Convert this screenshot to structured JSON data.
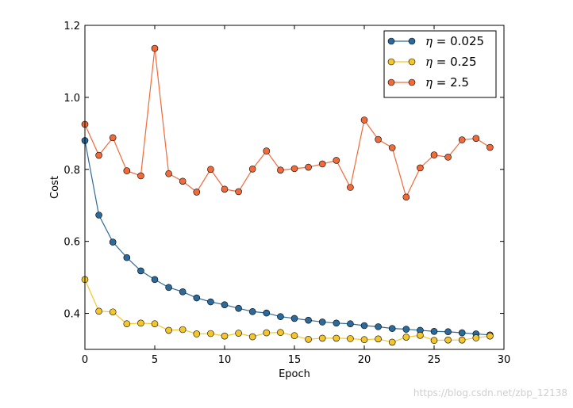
{
  "chart_data": {
    "type": "line",
    "title": "",
    "xlabel": "Epoch",
    "ylabel": "Cost",
    "xlim": [
      0,
      30
    ],
    "ylim": [
      0.3,
      1.2
    ],
    "xticks": [
      0,
      5,
      10,
      15,
      20,
      25,
      30
    ],
    "yticks": [
      0.4,
      0.6,
      0.8,
      1.0,
      1.2
    ],
    "ytick_labels": [
      "0.4",
      "0.6",
      "0.8",
      "1.0",
      "1.2"
    ],
    "grid": false,
    "legend_position": "top-right",
    "x": [
      0,
      1,
      2,
      3,
      4,
      5,
      6,
      7,
      8,
      9,
      10,
      11,
      12,
      13,
      14,
      15,
      16,
      17,
      18,
      19,
      20,
      21,
      22,
      23,
      24,
      25,
      26,
      27,
      28,
      29
    ],
    "series": [
      {
        "name": "η = 0.025",
        "legend_symbol": "η",
        "legend_value": "= 0.025",
        "color": "#2c6a9b",
        "values": [
          0.88,
          0.673,
          0.598,
          0.555,
          0.518,
          0.494,
          0.472,
          0.46,
          0.443,
          0.432,
          0.424,
          0.414,
          0.405,
          0.401,
          0.391,
          0.386,
          0.381,
          0.376,
          0.373,
          0.371,
          0.366,
          0.363,
          0.358,
          0.356,
          0.353,
          0.35,
          0.349,
          0.346,
          0.343,
          0.34
        ]
      },
      {
        "name": "η = 0.25",
        "legend_symbol": "η",
        "legend_value": "= 0.25",
        "color": "#f5c62b",
        "values": [
          0.494,
          0.406,
          0.404,
          0.371,
          0.373,
          0.371,
          0.353,
          0.355,
          0.343,
          0.344,
          0.337,
          0.345,
          0.335,
          0.346,
          0.347,
          0.338,
          0.328,
          0.331,
          0.331,
          0.33,
          0.327,
          0.329,
          0.32,
          0.334,
          0.339,
          0.325,
          0.326,
          0.326,
          0.332,
          0.337
        ]
      },
      {
        "name": "η = 2.5",
        "legend_symbol": "η",
        "legend_value": "= 2.5",
        "color": "#f26a3a",
        "values": [
          0.925,
          0.839,
          0.888,
          0.796,
          0.782,
          1.136,
          0.788,
          0.767,
          0.737,
          0.8,
          0.745,
          0.738,
          0.801,
          0.851,
          0.798,
          0.802,
          0.806,
          0.815,
          0.825,
          0.75,
          0.937,
          0.883,
          0.86,
          0.723,
          0.804,
          0.84,
          0.834,
          0.882,
          0.886,
          0.861
        ]
      }
    ]
  },
  "watermark": "https://blog.csdn.net/zbp_12138"
}
